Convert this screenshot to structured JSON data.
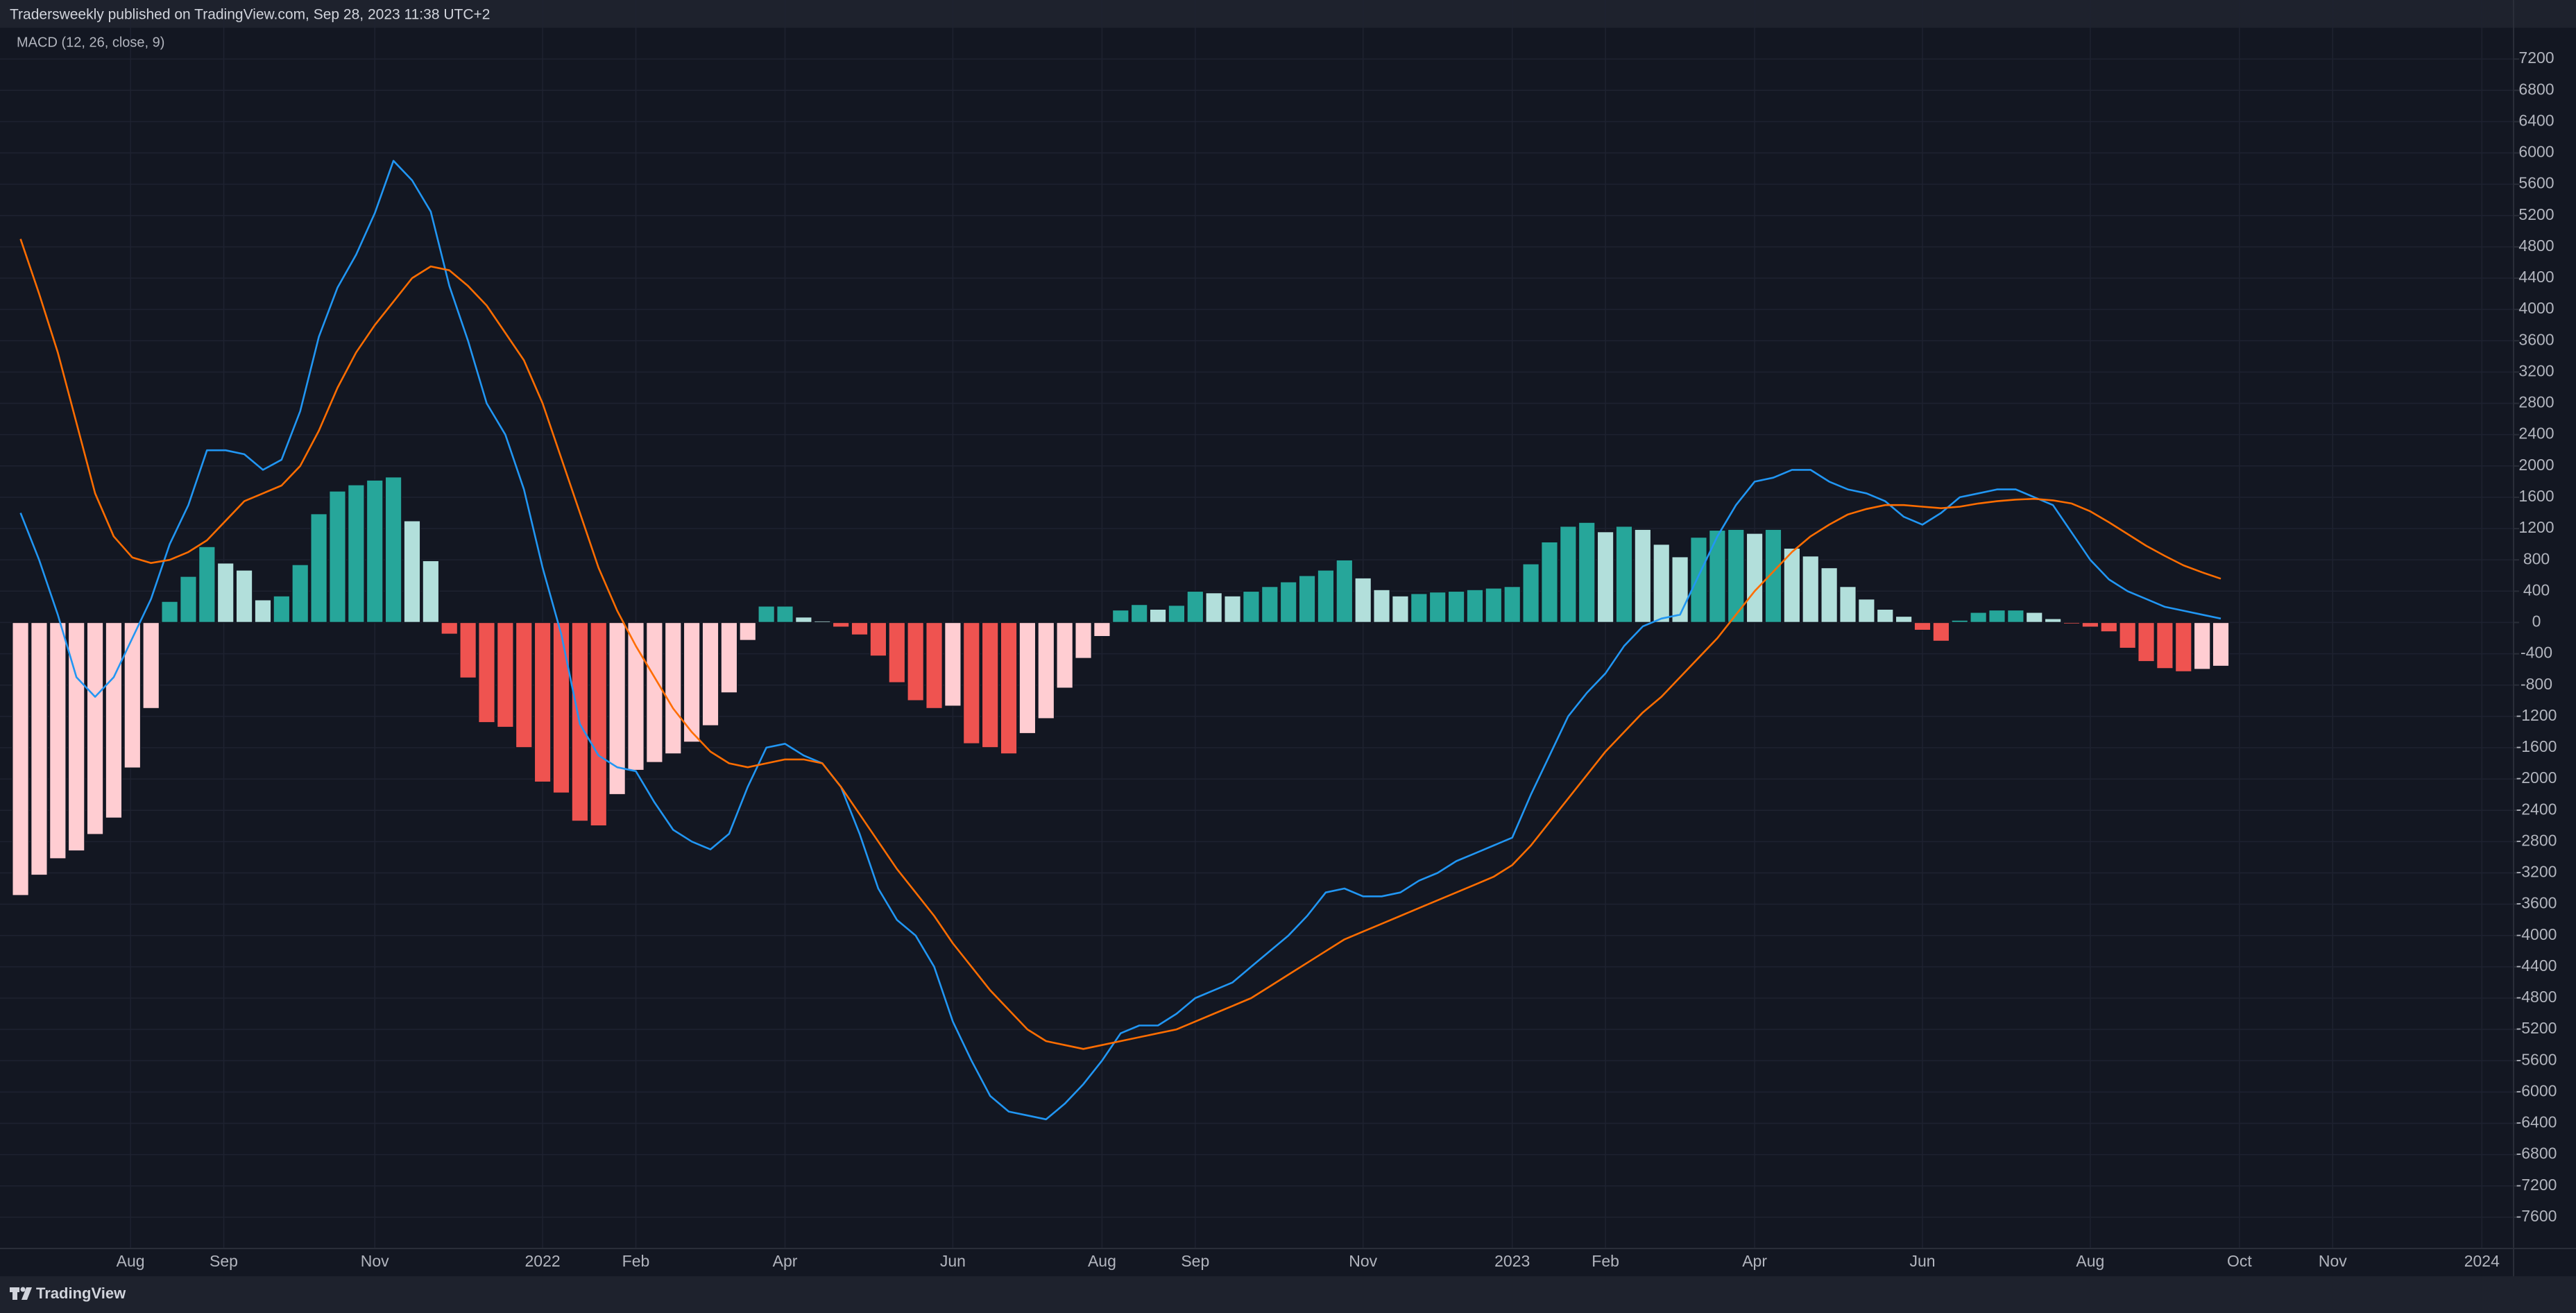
{
  "header": {
    "publisher": "Tradersweekly published on TradingView.com, Sep 28, 2023 11:38 UTC+2"
  },
  "footer": {
    "brand": "TradingView"
  },
  "chart_data": {
    "type": "combo",
    "title": "MACD (12, 26, close, 9)",
    "histogram": {
      "colors": [
        "#26a69a",
        "#b2dfdb",
        "#ef5350",
        "#ffcdd2"
      ],
      "values": [
        -3490,
        -3230,
        -3020,
        -2920,
        -2710,
        -2500,
        -1860,
        -1100,
        270,
        590,
        970,
        760,
        670,
        290,
        340,
        740,
        1390,
        1680,
        1760,
        1820,
        1860,
        1300,
        790,
        -150,
        -710,
        -1280,
        -1340,
        -1600,
        -2040,
        -2180,
        -2540,
        -2600,
        -2200,
        -1890,
        -1790,
        -1680,
        -1530,
        -1320,
        -900,
        -230,
        210,
        210,
        70,
        20,
        -60,
        -160,
        -430,
        -770,
        -1000,
        -1100,
        -1070,
        -1550,
        -1600,
        -1680,
        -1420,
        -1230,
        -840,
        -460,
        -180,
        160,
        230,
        170,
        220,
        400,
        380,
        340,
        400,
        460,
        520,
        600,
        670,
        800,
        570,
        420,
        340,
        370,
        390,
        400,
        420,
        440,
        460,
        750,
        1030,
        1230,
        1280,
        1160,
        1230,
        1190,
        1000,
        840,
        1090,
        1180,
        1190,
        1140,
        1190,
        950,
        850,
        700,
        460,
        300,
        170,
        80,
        -100,
        -240,
        30,
        130,
        160,
        160,
        130,
        50,
        -20,
        -60,
        -120,
        -330,
        -500,
        -590,
        -630,
        -600,
        -560
      ]
    },
    "series": [
      {
        "color": "#2196f3",
        "values": [
          1400,
          800,
          100,
          -700,
          -950,
          -700,
          -200,
          300,
          1000,
          1500,
          2200,
          2200,
          2150,
          1950,
          2080,
          2700,
          3650,
          4280,
          4700,
          5230,
          5900,
          5650,
          5250,
          4300,
          3600,
          2800,
          2400,
          1700,
          700,
          -150,
          -1300,
          -1700,
          -1850,
          -1900,
          -2300,
          -2650,
          -2800,
          -2900,
          -2700,
          -2100,
          -1600,
          -1550,
          -1700,
          -1800,
          -2100,
          -2700,
          -3400,
          -3800,
          -4000,
          -4400,
          -5100,
          -5600,
          -6050,
          -6250,
          -6300,
          -6350,
          -6150,
          -5900,
          -5600,
          -5250,
          -5150,
          -5150,
          -5000,
          -4800,
          -4700,
          -4600,
          -4400,
          -4200,
          -4000,
          -3750,
          -3450,
          -3400,
          -3500,
          -3500,
          -3450,
          -3300,
          -3200,
          -3050,
          -2950,
          -2850,
          -2750,
          -2200,
          -1700,
          -1200,
          -900,
          -650,
          -300,
          -50,
          50,
          100,
          600,
          1100,
          1500,
          1800,
          1850,
          1950,
          1950,
          1800,
          1700,
          1650,
          1550,
          1350,
          1250,
          1400,
          1600,
          1650,
          1700,
          1700,
          1600,
          1500,
          1150,
          800,
          550,
          400,
          300,
          200,
          150,
          100,
          50
        ]
      },
      {
        "color": "#ff6d00",
        "values": [
          4900,
          4200,
          3450,
          2550,
          1650,
          1100,
          830,
          760,
          800,
          900,
          1050,
          1300,
          1550,
          1650,
          1750,
          2000,
          2450,
          3000,
          3450,
          3800,
          4100,
          4400,
          4550,
          4500,
          4300,
          4050,
          3700,
          3350,
          2800,
          2100,
          1400,
          700,
          150,
          -300,
          -700,
          -1100,
          -1400,
          -1650,
          -1800,
          -1850,
          -1800,
          -1750,
          -1750,
          -1800,
          -2100,
          -2450,
          -2800,
          -3150,
          -3450,
          -3750,
          -4100,
          -4400,
          -4700,
          -4950,
          -5200,
          -5350,
          -5400,
          -5450,
          -5400,
          -5350,
          -5300,
          -5250,
          -5200,
          -5100,
          -5000,
          -4900,
          -4800,
          -4650,
          -4500,
          -4350,
          -4200,
          -4050,
          -3950,
          -3850,
          -3750,
          -3650,
          -3550,
          -3450,
          -3350,
          -3250,
          -3100,
          -2850,
          -2550,
          -2250,
          -1950,
          -1650,
          -1400,
          -1150,
          -950,
          -700,
          -450,
          -200,
          100,
          400,
          650,
          900,
          1100,
          1250,
          1380,
          1450,
          1500,
          1500,
          1480,
          1460,
          1480,
          1520,
          1550,
          1570,
          1580,
          1560,
          1520,
          1420,
          1280,
          1130,
          980,
          850,
          730,
          640,
          560
        ]
      }
    ],
    "xlim": [
      -1.1,
      133.7
    ],
    "xticks": [
      {
        "value": 5.9,
        "label": "Aug"
      },
      {
        "value": 10.9,
        "label": "Sep"
      },
      {
        "value": 19,
        "label": "Nov"
      },
      {
        "value": 28,
        "label": "2022"
      },
      {
        "value": 33,
        "label": "Feb"
      },
      {
        "value": 41,
        "label": "Apr"
      },
      {
        "value": 50,
        "label": "Jun"
      },
      {
        "value": 58,
        "label": "Aug"
      },
      {
        "value": 63,
        "label": "Sep"
      },
      {
        "value": 72,
        "label": "Nov"
      },
      {
        "value": 80,
        "label": "2023"
      },
      {
        "value": 85,
        "label": "Feb"
      },
      {
        "value": 93,
        "label": "Apr"
      },
      {
        "value": 102,
        "label": "Jun"
      },
      {
        "value": 111,
        "label": "Aug"
      },
      {
        "value": 119,
        "label": "Oct"
      },
      {
        "value": 124,
        "label": "Nov"
      },
      {
        "value": 132,
        "label": "2024"
      }
    ],
    "ylim": [
      -8000,
      7600
    ],
    "yticks": [
      -7600,
      -7200,
      -6800,
      -6400,
      -6000,
      -5600,
      -5200,
      -4800,
      -4400,
      -4000,
      -3600,
      -3200,
      -2800,
      -2400,
      -2000,
      -1600,
      -1200,
      -800,
      -400,
      0,
      400,
      800,
      1200,
      1600,
      2000,
      2400,
      2800,
      3200,
      3600,
      4000,
      4400,
      4800,
      5200,
      5600,
      6000,
      6400,
      6800,
      7200
    ],
    "grid": true
  }
}
